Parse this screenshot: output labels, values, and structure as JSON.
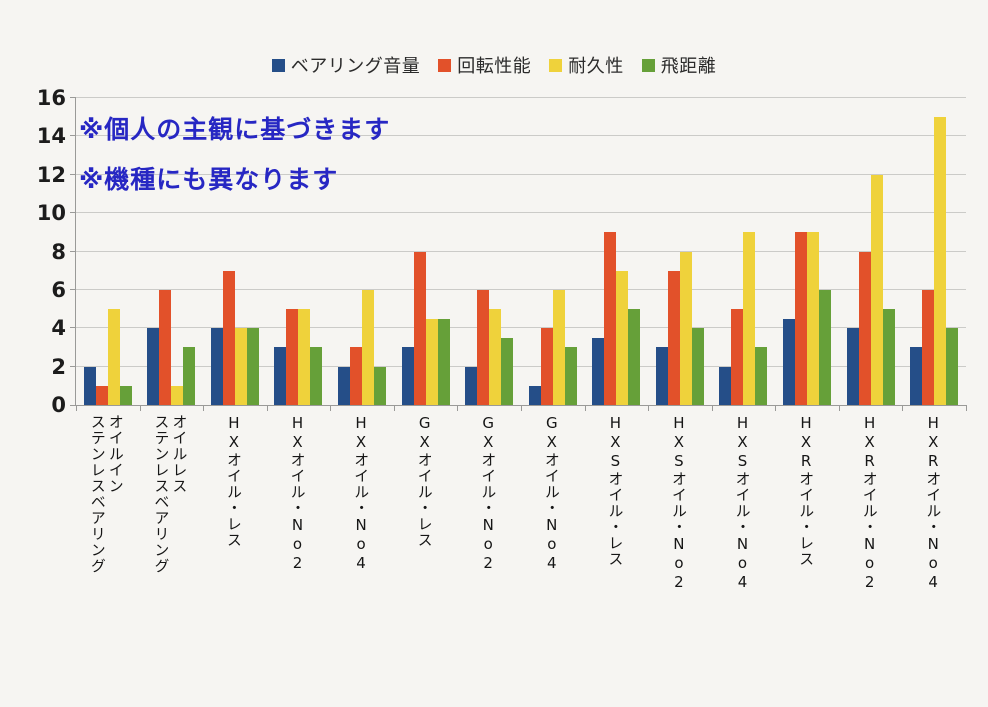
{
  "page": {
    "background": "#f6f5f2"
  },
  "annotations": [
    "※個人の主観に基づきます",
    "※機種にも異なります"
  ],
  "annotation_color": "#2727c3",
  "chart_data": {
    "type": "bar",
    "title": "",
    "xlabel": "",
    "ylabel": "",
    "ylim": [
      0,
      16
    ],
    "yticks": [
      0,
      2,
      4,
      6,
      8,
      10,
      12,
      14,
      16
    ],
    "grid": true,
    "legend_position": "top",
    "categories": [
      "オイルイン\nステンレスベアリング",
      "オイルレス\nステンレスベアリング",
      "HXオイル・レス",
      "HXオイル・No2",
      "HXオイル・No4",
      "GXオイル・レス",
      "GXオイル・No2",
      "GXオイル・No4",
      "HXSオイル・レス",
      "HXSオイル・No2",
      "HXSオイル・No4",
      "HXRオイル・レス",
      "HXRオイル・No2",
      "HXRオイル・No4"
    ],
    "series": [
      {
        "name": "ベアリング音量",
        "color": "#254E88",
        "values": [
          2,
          4,
          4,
          3,
          2,
          3,
          2,
          1,
          3.5,
          3,
          2,
          4.5,
          4,
          3
        ]
      },
      {
        "name": "回転性能",
        "color": "#E2512A",
        "values": [
          1,
          6,
          7,
          5,
          3,
          8,
          6,
          4,
          9,
          7,
          5,
          9,
          8,
          6
        ]
      },
      {
        "name": "耐久性",
        "color": "#EFD23B",
        "values": [
          5,
          1,
          4,
          5,
          6,
          4.5,
          5,
          6,
          7,
          8,
          9,
          9,
          12,
          15
        ]
      },
      {
        "name": "飛距離",
        "color": "#66A039",
        "values": [
          1,
          3,
          4,
          3,
          2,
          4.5,
          3.5,
          3,
          5,
          4,
          3,
          6,
          5,
          4
        ]
      }
    ]
  }
}
